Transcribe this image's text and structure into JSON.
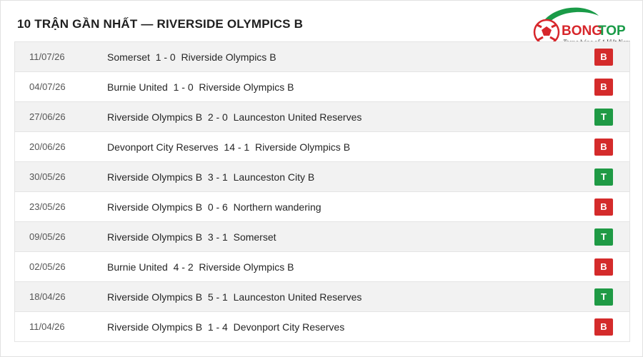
{
  "header": {
    "title": "10 TRẬN GẦN NHẤT — RIVERSIDE OLYMPICS B"
  },
  "logo": {
    "brand_part1": "BONG",
    "brand_part2": "TOP",
    "tagline": "Trang bóng số 1 Việt Nam",
    "colors": {
      "red": "#d7262b",
      "green": "#1a9b48"
    }
  },
  "result_colors": {
    "B": "#d42b2b",
    "T": "#1f9a45"
  },
  "matches": [
    {
      "date": "11/07/26",
      "home": "Somerset",
      "score": "1 - 0",
      "away": "Riverside Olympics B",
      "result": "B"
    },
    {
      "date": "04/07/26",
      "home": "Burnie United",
      "score": "1 - 0",
      "away": "Riverside Olympics B",
      "result": "B"
    },
    {
      "date": "27/06/26",
      "home": "Riverside Olympics B",
      "score": "2 - 0",
      "away": "Launceston United Reserves",
      "result": "T"
    },
    {
      "date": "20/06/26",
      "home": "Devonport City Reserves",
      "score": "14 - 1",
      "away": "Riverside Olympics B",
      "result": "B"
    },
    {
      "date": "30/05/26",
      "home": "Riverside Olympics B",
      "score": "3 - 1",
      "away": "Launceston City B",
      "result": "T"
    },
    {
      "date": "23/05/26",
      "home": "Riverside Olympics B",
      "score": "0 - 6",
      "away": "Northern wandering",
      "result": "B"
    },
    {
      "date": "09/05/26",
      "home": "Riverside Olympics B",
      "score": "3 - 1",
      "away": "Somerset",
      "result": "T"
    },
    {
      "date": "02/05/26",
      "home": "Burnie United",
      "score": "4 - 2",
      "away": "Riverside Olympics B",
      "result": "B"
    },
    {
      "date": "18/04/26",
      "home": "Riverside Olympics B",
      "score": "5 - 1",
      "away": "Launceston United Reserves",
      "result": "T"
    },
    {
      "date": "11/04/26",
      "home": "Riverside Olympics B",
      "score": "1 - 4",
      "away": "Devonport City Reserves",
      "result": "B"
    }
  ]
}
